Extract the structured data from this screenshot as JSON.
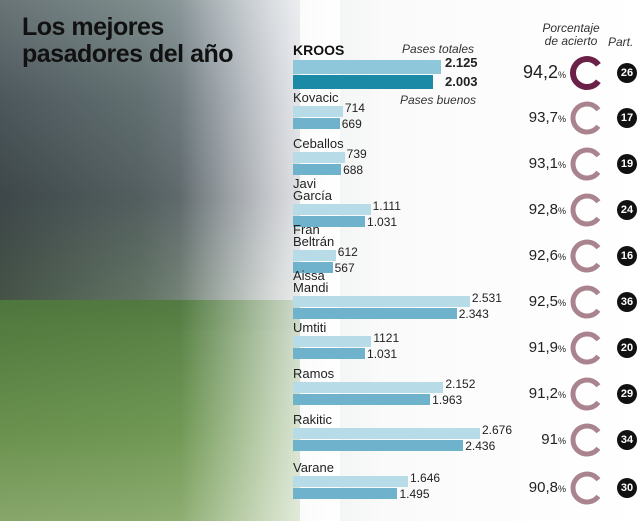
{
  "chart_data": {
    "type": "bar",
    "title": "Los mejores pasadores del año",
    "series": [
      {
        "name": "Pases totales",
        "values": [
          2125,
          714,
          739,
          1111,
          612,
          2531,
          1121,
          2152,
          2676,
          1646
        ]
      },
      {
        "name": "Pases buenos",
        "values": [
          2003,
          669,
          688,
          1031,
          567,
          2343,
          1031,
          1963,
          2436,
          1495
        ]
      }
    ],
    "categories": [
      "KROOS",
      "Kovacic",
      "Ceballos",
      "Javi\nGarcía",
      "Fran\nBeltrán",
      "Aissa\nMandi",
      "Umtiti",
      "Ramos",
      "Rakitic",
      "Varane"
    ],
    "total_labels": [
      "2.125",
      "714",
      "739",
      "1.111",
      "612",
      "2.531",
      "1121",
      "2.152",
      "2.676",
      "1.646"
    ],
    "good_labels": [
      "2.003",
      "669",
      "688",
      "1.031",
      "567",
      "2.343",
      "1.031",
      "1.963",
      "2.436",
      "1.495"
    ],
    "accuracy_header": "Porcentaje de acierto",
    "accuracy": [
      94.2,
      93.7,
      93.1,
      92.8,
      92.6,
      92.5,
      91.9,
      91.2,
      91,
      90.8
    ],
    "accuracy_labels": [
      "94,2",
      "93,7",
      "93,1",
      "92,8",
      "92,6",
      "92,5",
      "91,9",
      "91,2",
      "91",
      "90,8"
    ],
    "percent_sign": "%",
    "games_header": "Part.",
    "games": [
      "26",
      "17",
      "19",
      "24",
      "16",
      "36",
      "20",
      "29",
      "34",
      "30"
    ],
    "colors": {
      "total": "#b8dbe8",
      "good": "#6fb2cc",
      "lead_total": "#8ec6da",
      "lead_good": "#1b8aa6",
      "ring_lead": "#6b2048",
      "ring": "#a9848f"
    }
  }
}
